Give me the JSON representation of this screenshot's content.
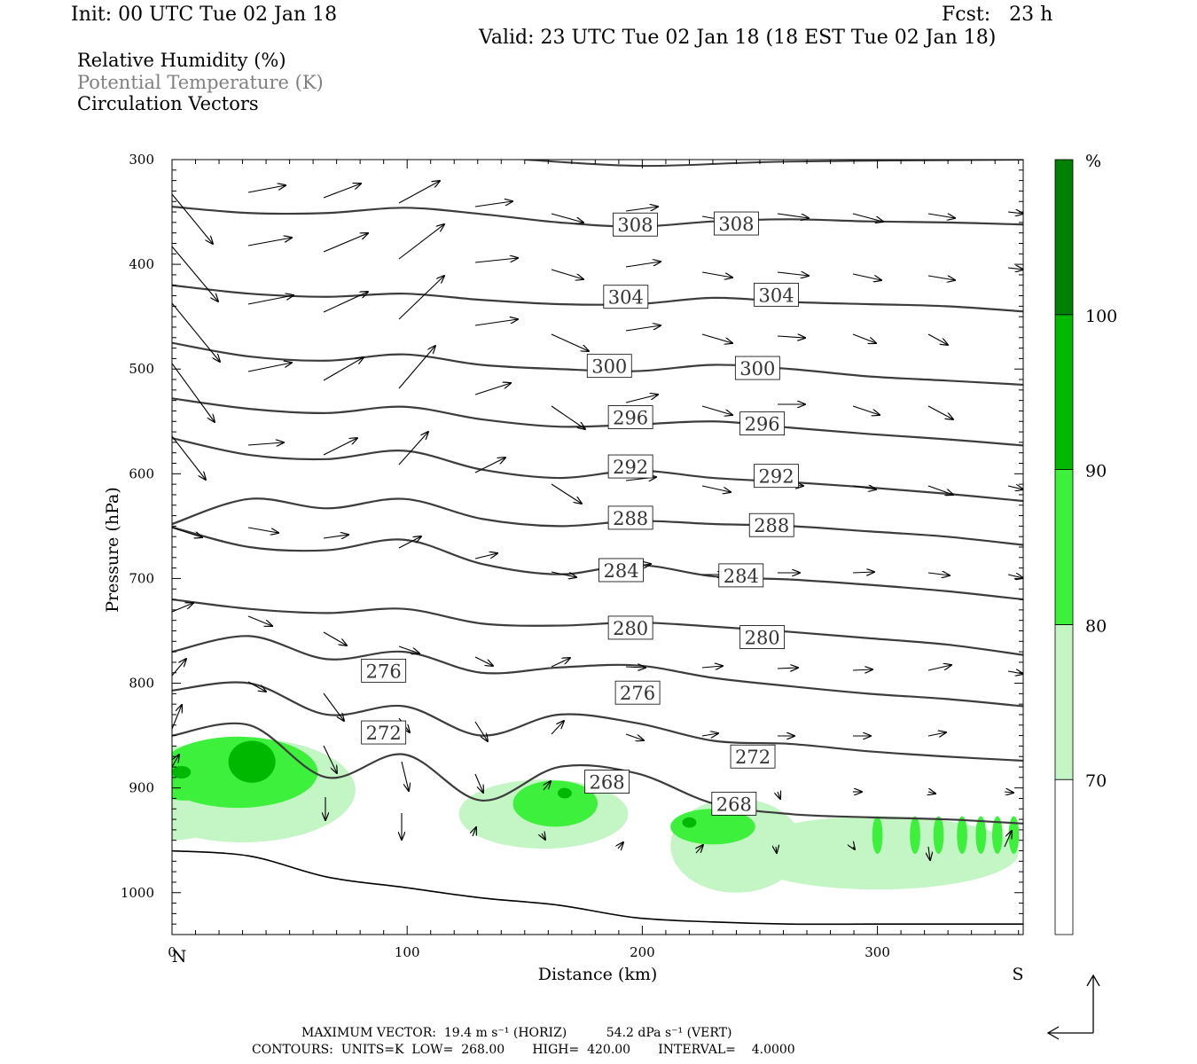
{
  "header": {
    "init": "Init: 00 UTC Tue 02 Jan 18",
    "fcst": "Fcst:   23 h",
    "valid": "Valid: 23 UTC Tue 02 Jan 18 (18 EST Tue 02 Jan 18)"
  },
  "legend": {
    "rh": "Relative Humidity (%)",
    "theta": "Potential Temperature (K)",
    "vectors": "Circulation Vectors"
  },
  "colors": {
    "theta_line": "#3c3c3c",
    "rh_70": "#c4f5c4",
    "rh_80": "#3cf03c",
    "rh_90": "#00b800",
    "rh_100": "#008000",
    "theta_label_gray": "#808080"
  },
  "chart_data": {
    "type": "cross-section",
    "xlabel": "Distance (km)",
    "ylabel": "Pressure (hPa)",
    "xlim": [
      0,
      362
    ],
    "ylim": [
      1040,
      300
    ],
    "x_ticks": [
      0,
      100,
      200,
      300
    ],
    "y_ticks": [
      300,
      400,
      500,
      600,
      700,
      800,
      900,
      1000
    ],
    "x_end_labels": {
      "left": "N",
      "right": "S"
    },
    "colorbar": {
      "unit": "%",
      "levels": [
        70,
        80,
        90,
        100
      ],
      "colors": [
        "#ffffff",
        "#c4f5c4",
        "#3cf03c",
        "#00b800",
        "#008000"
      ]
    },
    "theta_contours": [
      {
        "value": 308,
        "p": [
          345,
          351,
          351,
          346,
          352,
          360,
          364,
          359,
          357,
          359,
          360,
          362
        ],
        "labels": [
          [
            197,
            362
          ],
          [
            240,
            361
          ]
        ]
      },
      {
        "value": 304,
        "p": [
          420,
          428,
          431,
          428,
          434,
          438,
          438,
          432,
          436,
          438,
          440,
          445
        ],
        "labels": [
          [
            193,
            431
          ],
          [
            257,
            429
          ]
        ]
      },
      {
        "value": 300,
        "p": [
          475,
          488,
          492,
          486,
          496,
          500,
          502,
          496,
          500,
          507,
          511,
          515
        ],
        "labels": [
          [
            186,
            497
          ],
          [
            249,
            499
          ]
        ]
      },
      {
        "value": 296,
        "p": [
          528,
          538,
          542,
          536,
          548,
          555,
          553,
          550,
          556,
          562,
          567,
          573
        ],
        "labels": [
          [
            195,
            546
          ],
          [
            251,
            552
          ]
        ]
      },
      {
        "value": 292,
        "p": [
          566,
          582,
          586,
          578,
          596,
          604,
          597,
          604,
          608,
          613,
          619,
          626
        ],
        "labels": [
          [
            195,
            593
          ],
          [
            257,
            602
          ]
        ]
      },
      {
        "value": 288,
        "p": [
          648,
          624,
          633,
          624,
          643,
          650,
          645,
          648,
          650,
          655,
          660,
          668
        ],
        "labels": [
          [
            195,
            642
          ],
          [
            255,
            649
          ]
        ]
      },
      {
        "value": 284,
        "p": [
          651,
          670,
          673,
          663,
          686,
          696,
          687,
          698,
          701,
          706,
          712,
          720
        ],
        "labels": [
          [
            191,
            692
          ],
          [
            242,
            697
          ]
        ]
      },
      {
        "value": 280,
        "p": [
          720,
          729,
          733,
          729,
          743,
          745,
          742,
          746,
          751,
          757,
          763,
          773
        ],
        "labels": [
          [
            195,
            747
          ],
          [
            251,
            756
          ]
        ]
      },
      {
        "value": 276,
        "p": [
          770,
          755,
          777,
          770,
          790,
          785,
          783,
          795,
          803,
          810,
          815,
          822
        ],
        "labels": [
          [
            90,
            788
          ],
          [
            198,
            809
          ]
        ]
      },
      {
        "value": 272,
        "p": [
          807,
          800,
          830,
          822,
          850,
          830,
          838,
          855,
          858,
          865,
          870,
          874
        ],
        "labels": [
          [
            90,
            847
          ],
          [
            247,
            870
          ]
        ]
      },
      {
        "value": 268,
        "p": [
          850,
          840,
          890,
          868,
          912,
          880,
          886,
          915,
          925,
          928,
          930,
          934
        ],
        "labels": [
          [
            185,
            894
          ],
          [
            239,
            915
          ]
        ]
      }
    ],
    "surface_pressure": [
      960,
      965,
      985,
      995,
      1005,
      1012,
      1024,
      1028,
      1030,
      1030,
      1030,
      1030
    ],
    "rh_note": "Moist (>70%) pockets near 850-960 hPa around 0-80 km, 125-200 km and 210-362 km",
    "max_vector": {
      "horiz": "19.4",
      "vert": "54.2"
    },
    "contours": {
      "units": "K",
      "low": "268.00",
      "high": "420.00",
      "interval": "4.0000"
    }
  },
  "footer": {
    "max_vector": "MAXIMUM VECTOR:  19.4 m s⁻¹ (HORIZ)          54.2 dPa s⁻¹ (VERT)",
    "contours": "CONTOURS:  UNITS=K  LOW=  268.00       HIGH=  420.00       INTERVAL=    4.0000"
  }
}
